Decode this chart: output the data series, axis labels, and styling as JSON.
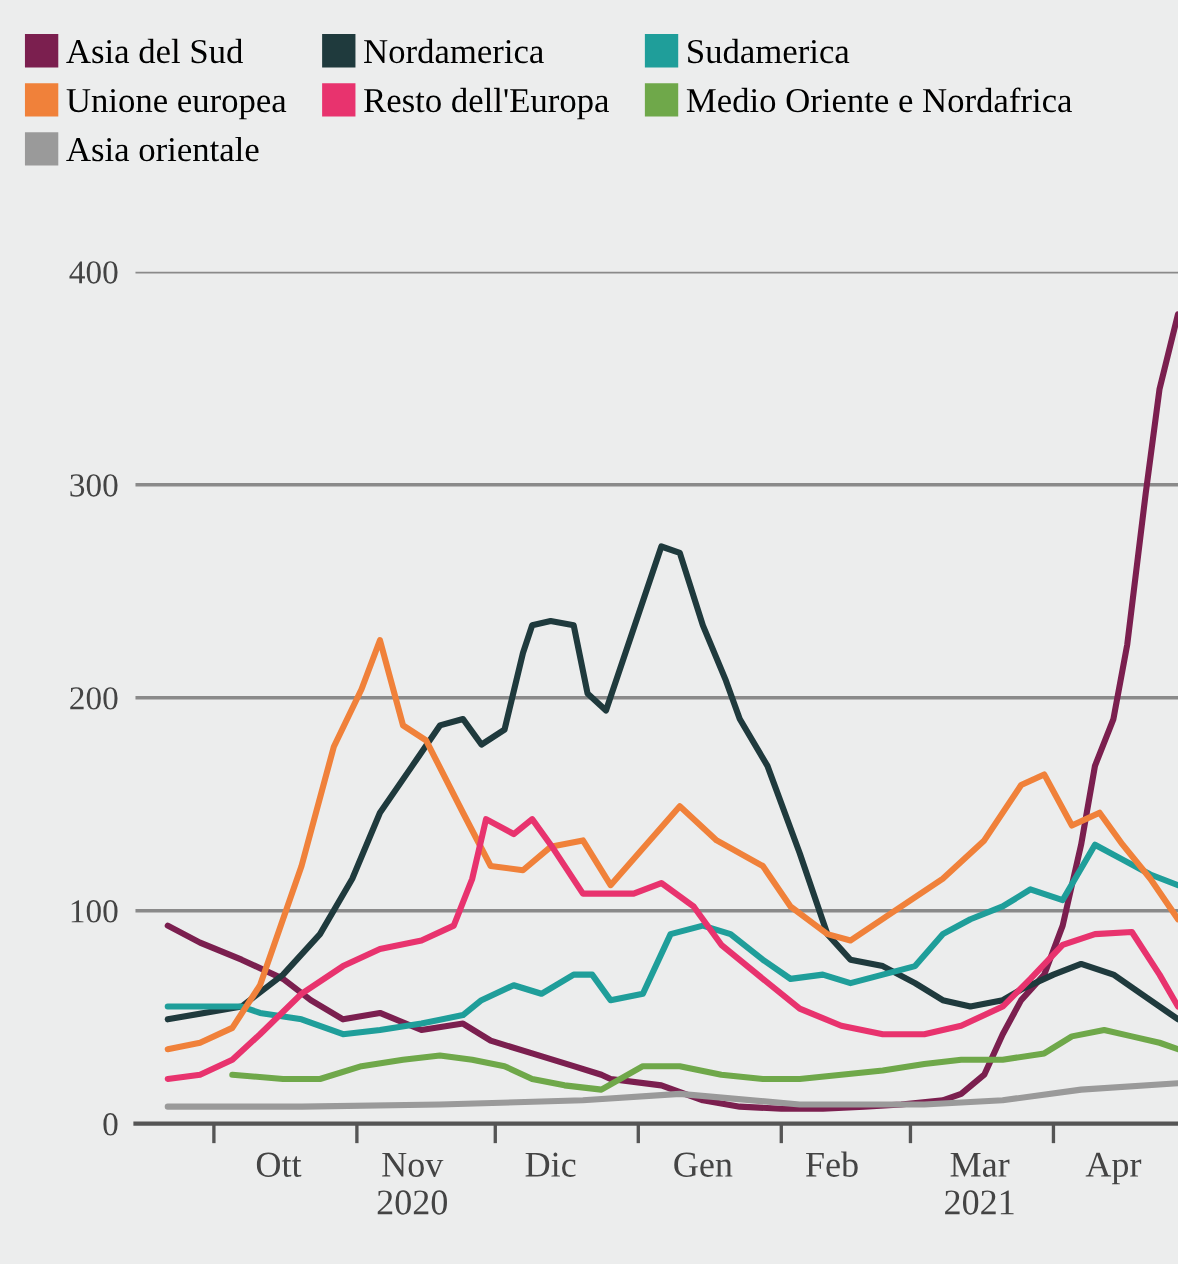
{
  "chart_data": {
    "type": "line",
    "xlim": [
      "2020-09-14",
      "2021-04-28"
    ],
    "ylim": [
      0,
      400
    ],
    "yticks": [
      0,
      100,
      200,
      300,
      400
    ],
    "xticks": [
      {
        "value": "2020-10-01",
        "label": null
      },
      {
        "value": "2020-10-15",
        "label": "Ott"
      },
      {
        "value": "2020-11-01",
        "label": null
      },
      {
        "value": "2020-11-13",
        "label": "Nov\n2020"
      },
      {
        "value": "2020-12-01",
        "label": null
      },
      {
        "value": "2020-12-13",
        "label": "Dic"
      },
      {
        "value": "2021-01-01",
        "label": null
      },
      {
        "value": "2021-01-15",
        "label": "Gen"
      },
      {
        "value": "2021-02-01",
        "label": null
      },
      {
        "value": "2021-02-12",
        "label": "Feb"
      },
      {
        "value": "2021-03-01",
        "label": null
      },
      {
        "value": "2021-03-16",
        "label": "Mar\n2021"
      },
      {
        "value": "2021-04-01",
        "label": null
      },
      {
        "value": "2021-04-14",
        "label": "Apr"
      }
    ],
    "grid": "y",
    "legend": "top left",
    "marker": "none",
    "line_style": "solid",
    "series": [
      {
        "name": "Asia del Sud",
        "color": "#7b1f4f",
        "x": [
          "2020-09-21",
          "2020-09-28",
          "2020-10-07",
          "2020-10-16",
          "2020-10-22",
          "2020-10-29",
          "2020-11-06",
          "2020-11-15",
          "2020-11-24",
          "2020-11-30",
          "2020-12-09",
          "2020-12-18",
          "2020-12-24",
          "2020-12-26",
          "2021-01-06",
          "2021-01-15",
          "2021-01-23",
          "2021-02-01",
          "2021-02-10",
          "2021-02-19",
          "2021-02-27",
          "2021-03-08",
          "2021-03-12",
          "2021-03-17",
          "2021-03-21",
          "2021-03-25",
          "2021-03-30",
          "2021-04-03",
          "2021-04-07",
          "2021-04-10",
          "2021-04-14",
          "2021-04-17",
          "2021-04-21",
          "2021-04-24",
          "2021-04-28"
        ],
        "values": [
          93,
          85,
          77,
          68,
          58,
          49,
          52,
          44,
          47,
          39,
          33,
          27,
          23,
          21,
          18,
          11,
          8,
          7,
          7,
          8,
          9,
          11,
          14,
          23,
          42,
          58,
          70,
          93,
          131,
          168,
          190,
          225,
          296,
          345,
          380
        ]
      },
      {
        "name": "Nordamerica",
        "color": "#1f3a3d",
        "x": [
          "2020-09-21",
          "2020-10-07",
          "2020-10-16",
          "2020-10-24",
          "2020-10-31",
          "2020-11-06",
          "2020-11-13",
          "2020-11-19",
          "2020-11-24",
          "2020-11-28",
          "2020-12-03",
          "2020-12-07",
          "2020-12-09",
          "2020-12-13",
          "2020-12-18",
          "2020-12-21",
          "2020-12-25",
          "2021-01-06",
          "2021-01-10",
          "2021-01-15",
          "2021-01-20",
          "2021-01-23",
          "2021-01-29",
          "2021-02-05",
          "2021-02-11",
          "2021-02-16",
          "2021-02-23",
          "2021-03-02",
          "2021-03-08",
          "2021-03-14",
          "2021-03-21",
          "2021-03-25",
          "2021-04-01",
          "2021-04-07",
          "2021-04-14",
          "2021-04-20",
          "2021-04-28"
        ],
        "values": [
          49,
          55,
          70,
          89,
          115,
          146,
          168,
          187,
          190,
          178,
          185,
          221,
          234,
          236,
          234,
          202,
          194,
          271,
          268,
          234,
          208,
          190,
          168,
          127,
          89,
          77,
          74,
          66,
          58,
          55,
          58,
          63,
          70,
          75,
          70,
          61,
          49
        ]
      },
      {
        "name": "Sudamerica",
        "color": "#1f9e9a",
        "x": [
          "2020-09-21",
          "2020-10-07",
          "2020-10-11",
          "2020-10-20",
          "2020-10-29",
          "2020-11-06",
          "2020-11-15",
          "2020-11-24",
          "2020-11-28",
          "2020-12-05",
          "2020-12-11",
          "2020-12-18",
          "2020-12-22",
          "2020-12-26",
          "2021-01-02",
          "2021-01-08",
          "2021-01-15",
          "2021-01-21",
          "2021-01-28",
          "2021-02-03",
          "2021-02-10",
          "2021-02-16",
          "2021-02-23",
          "2021-03-02",
          "2021-03-08",
          "2021-03-14",
          "2021-03-21",
          "2021-03-27",
          "2021-04-03",
          "2021-04-10",
          "2021-04-16",
          "2021-04-22",
          "2021-04-28"
        ],
        "values": [
          55,
          55,
          52,
          49,
          42,
          44,
          47,
          51,
          58,
          65,
          61,
          70,
          70,
          58,
          61,
          89,
          93,
          89,
          77,
          68,
          70,
          66,
          70,
          74,
          89,
          96,
          102,
          110,
          105,
          131,
          124,
          117,
          112
        ]
      },
      {
        "name": "Unione europea",
        "color": "#f0813a",
        "x": [
          "2020-09-21",
          "2020-09-28",
          "2020-10-05",
          "2020-10-11",
          "2020-10-20",
          "2020-10-27",
          "2020-11-02",
          "2020-11-06",
          "2020-11-11",
          "2020-11-16",
          "2020-11-24",
          "2020-11-30",
          "2020-12-07",
          "2020-12-13",
          "2020-12-20",
          "2020-12-26",
          "2021-01-10",
          "2021-01-18",
          "2021-01-28",
          "2021-02-03",
          "2021-02-11",
          "2021-02-16",
          "2021-02-27",
          "2021-03-08",
          "2021-03-17",
          "2021-03-25",
          "2021-03-30",
          "2021-04-05",
          "2021-04-11",
          "2021-04-16",
          "2021-04-22",
          "2021-04-28"
        ],
        "values": [
          35,
          38,
          45,
          65,
          121,
          177,
          204,
          227,
          187,
          180,
          146,
          121,
          119,
          130,
          133,
          112,
          149,
          133,
          121,
          102,
          89,
          86,
          102,
          115,
          133,
          159,
          164,
          140,
          146,
          131,
          115,
          96
        ]
      },
      {
        "name": "Resto dell'Europa",
        "color": "#e8336e",
        "x": [
          "2020-09-21",
          "2020-09-28",
          "2020-10-05",
          "2020-10-11",
          "2020-10-20",
          "2020-10-29",
          "2020-11-06",
          "2020-11-15",
          "2020-11-22",
          "2020-11-26",
          "2020-11-29",
          "2020-12-05",
          "2020-12-09",
          "2020-12-13",
          "2020-12-20",
          "2020-12-24",
          "2020-12-31",
          "2021-01-06",
          "2021-01-13",
          "2021-01-19",
          "2021-01-28",
          "2021-02-05",
          "2021-02-14",
          "2021-02-23",
          "2021-03-04",
          "2021-03-12",
          "2021-03-21",
          "2021-03-27",
          "2021-04-03",
          "2021-04-10",
          "2021-04-18",
          "2021-04-24",
          "2021-04-28"
        ],
        "values": [
          21,
          23,
          30,
          42,
          61,
          74,
          82,
          86,
          93,
          115,
          143,
          136,
          143,
          131,
          108,
          108,
          108,
          113,
          102,
          84,
          68,
          54,
          46,
          42,
          42,
          46,
          55,
          68,
          84,
          89,
          90,
          70,
          55
        ]
      },
      {
        "name": "Medio Oriente e Nordafrica",
        "color": "#6fa84a",
        "x": [
          "2020-10-05",
          "2020-10-16",
          "2020-10-24",
          "2020-11-02",
          "2020-11-11",
          "2020-11-19",
          "2020-11-26",
          "2020-12-03",
          "2020-12-09",
          "2020-12-16",
          "2020-12-24",
          "2021-01-02",
          "2021-01-10",
          "2021-01-19",
          "2021-01-28",
          "2021-02-05",
          "2021-02-14",
          "2021-02-23",
          "2021-03-04",
          "2021-03-12",
          "2021-03-21",
          "2021-03-30",
          "2021-04-05",
          "2021-04-12",
          "2021-04-18",
          "2021-04-24",
          "2021-04-28"
        ],
        "values": [
          23,
          21,
          21,
          27,
          30,
          32,
          30,
          27,
          21,
          18,
          16,
          27,
          27,
          23,
          21,
          21,
          23,
          25,
          28,
          30,
          30,
          33,
          41,
          44,
          41,
          38,
          35
        ]
      },
      {
        "name": "Asia orientale",
        "color": "#9a9a9a",
        "x": [
          "2020-09-21",
          "2020-10-20",
          "2020-11-19",
          "2020-12-20",
          "2021-01-10",
          "2021-02-05",
          "2021-03-04",
          "2021-03-21",
          "2021-04-07",
          "2021-04-28"
        ],
        "values": [
          8,
          8,
          9,
          11,
          14,
          9,
          9,
          11,
          16,
          19
        ]
      }
    ]
  }
}
